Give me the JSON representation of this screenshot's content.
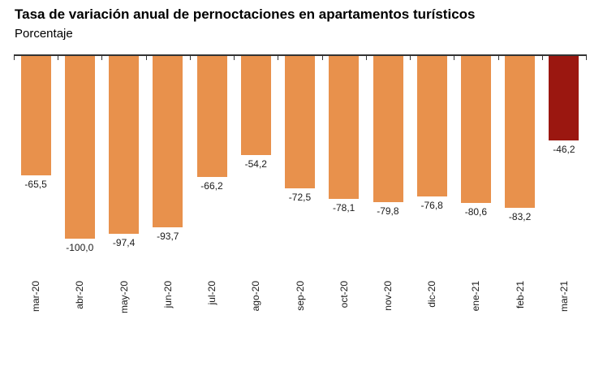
{
  "header": {
    "title": "Tasa de variación anual de pernoctaciones en apartamentos turísticos",
    "subtitle": "Porcentaje"
  },
  "chart_data": {
    "type": "bar",
    "title": "Tasa de variación anual de pernoctaciones en apartamentos turísticos",
    "ylabel": "Porcentaje",
    "categories": [
      "mar-20",
      "abr-20",
      "may-20",
      "jun-20",
      "jul-20",
      "ago-20",
      "sep-20",
      "oct-20",
      "nov-20",
      "dic-20",
      "ene-21",
      "feb-21",
      "mar-21"
    ],
    "values": [
      -65.5,
      -100.0,
      -97.4,
      -93.7,
      -66.2,
      -54.2,
      -72.5,
      -78.1,
      -79.8,
      -76.8,
      -80.6,
      -83.2,
      -46.2
    ],
    "value_labels": [
      "-65,5",
      "-100,0",
      "-97,4",
      "-93,7",
      "-66,2",
      "-54,2",
      "-72,5",
      "-78,1",
      "-79,8",
      "-76,8",
      "-80,6",
      "-83,2",
      "-46,2"
    ],
    "highlight_index": 12,
    "ylim": [
      -100,
      0
    ],
    "axis_position": "top",
    "grid": false,
    "legend": false,
    "colors": {
      "bar": "#E8914C",
      "highlight": "#9B1710",
      "axis": "#333333",
      "text": "#1A1A1A"
    }
  }
}
